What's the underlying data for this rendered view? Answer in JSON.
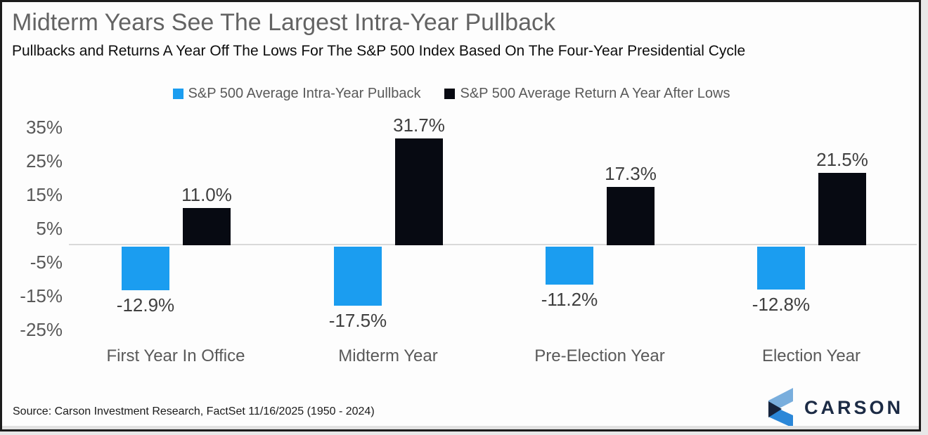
{
  "header": {
    "title": "Midterm Years See The Largest Intra-Year Pullback",
    "subtitle": "Pullbacks and Returns A Year Off The Lows For The S&P 500 Index Based On The Four-Year Presidential Cycle"
  },
  "chart_data": {
    "type": "bar",
    "categories": [
      "First Year In Office",
      "Midterm Year",
      "Pre-Election Year",
      "Election Year"
    ],
    "series": [
      {
        "name": "S&P 500 Average Intra-Year Pullback",
        "color": "#1b9df0",
        "values": [
          -12.9,
          -17.5,
          -11.2,
          -12.8
        ],
        "labels": [
          "-12.9%",
          "-17.5%",
          "-11.2%",
          "-12.8%"
        ]
      },
      {
        "name": "S&P 500 Average Return A Year After Lows",
        "color": "#070a12",
        "values": [
          11.0,
          31.7,
          17.3,
          21.5
        ],
        "labels": [
          "11.0%",
          "31.7%",
          "17.3%",
          "21.5%"
        ]
      }
    ],
    "y_axis": {
      "tick_labels": [
        "35%",
        "25%",
        "15%",
        "5%",
        "-5%",
        "-15%",
        "-25%"
      ],
      "tick_values": [
        35,
        25,
        15,
        5,
        -5,
        -15,
        -25
      ],
      "ylim": [
        -30,
        40
      ],
      "grid": false
    },
    "legend_position": "top",
    "baseline_color": "#d9d9d9"
  },
  "footer": {
    "source": "Source: Carson Investment Research, FactSet 11/16/2025 (1950 - 2024)",
    "brand": "CARSON"
  },
  "colors": {
    "title": "#636363",
    "axis_text": "#595959",
    "data_label": "#3f3f3f",
    "pullback_bar": "#1b9df0",
    "return_bar": "#070a12",
    "brand_navy": "#1c2b45",
    "logo_light_blue": "#79aedd",
    "logo_blue": "#2b87d8",
    "logo_navy": "#16243d"
  }
}
